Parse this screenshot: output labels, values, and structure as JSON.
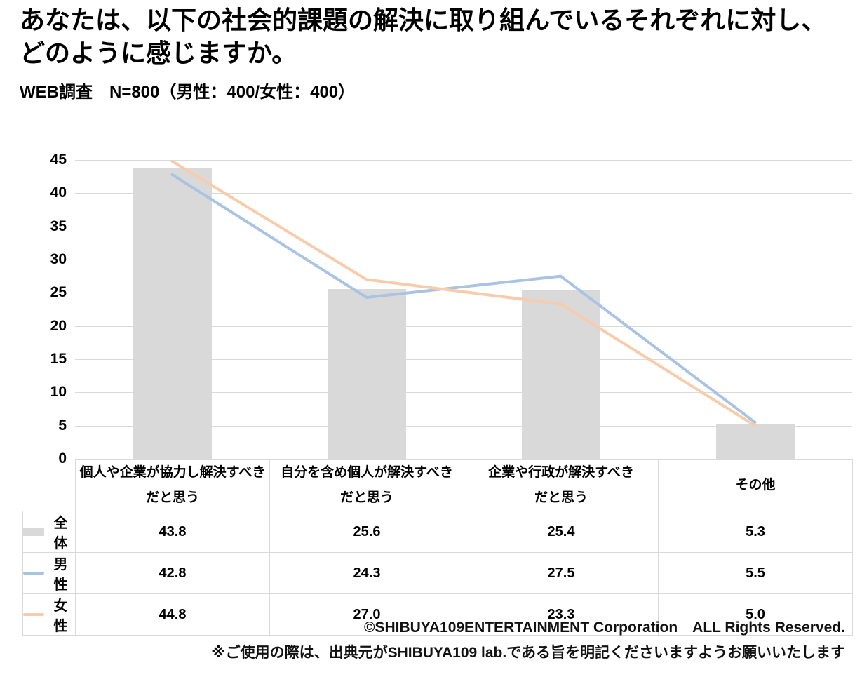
{
  "title": "あなたは、以下の社会的課題の解決に取り組んでいるそれぞれに対し、\nどのように感じますか。",
  "subtitle": "WEB調査　N=800（男性：400/女性：400）",
  "chart_data": {
    "type": "combo_bar_line",
    "categories": [
      "個人や企業が協力し解決すべき\nだと思う",
      "自分を含め個人が解決すべき\nだと思う",
      "企業や行政が解決すべき\nだと思う",
      "その他"
    ],
    "series": [
      {
        "name": "全体",
        "type": "bar",
        "color": "#d9d9d9",
        "values": [
          43.8,
          25.6,
          25.4,
          5.3
        ]
      },
      {
        "name": "男性",
        "type": "line",
        "color": "#a9c3e3",
        "values": [
          42.8,
          24.3,
          27.5,
          5.5
        ]
      },
      {
        "name": "女性",
        "type": "line",
        "color": "#f8cbaa",
        "values": [
          44.8,
          27.0,
          23.3,
          5.0
        ]
      }
    ],
    "ylim": [
      0,
      45
    ],
    "ytick_step": 5,
    "grid": true,
    "value_decimals": 1,
    "legend_position": "table-left",
    "gridline_color": "#dadada",
    "table_border_color": "#d9d9d9"
  },
  "footer": {
    "copyright": "©SHIBUYA109ENTERTAINMENT Corporation　ALL Rights Reserved.",
    "note": "※ご使用の際は、出典元がSHIBUYA109 lab.である旨を明記くださいますようお願いいたします"
  }
}
